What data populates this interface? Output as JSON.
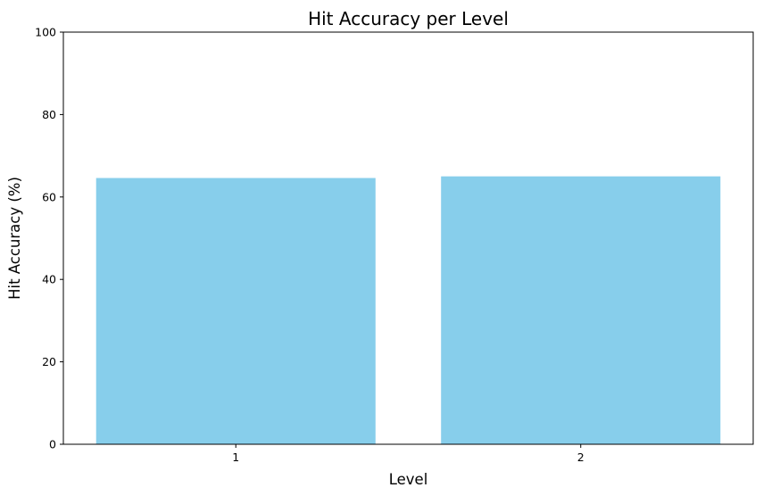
{
  "chart_data": {
    "type": "bar",
    "title": "Hit Accuracy per Level",
    "xlabel": "Level",
    "ylabel": "Hit Accuracy (%)",
    "categories": [
      "1",
      "2"
    ],
    "values": [
      64.6,
      65.0
    ],
    "ylim": [
      0,
      100
    ],
    "yticks": [
      0,
      20,
      40,
      60,
      80,
      100
    ],
    "bar_color": "#87CEEB",
    "grid": false,
    "legend": "none"
  }
}
